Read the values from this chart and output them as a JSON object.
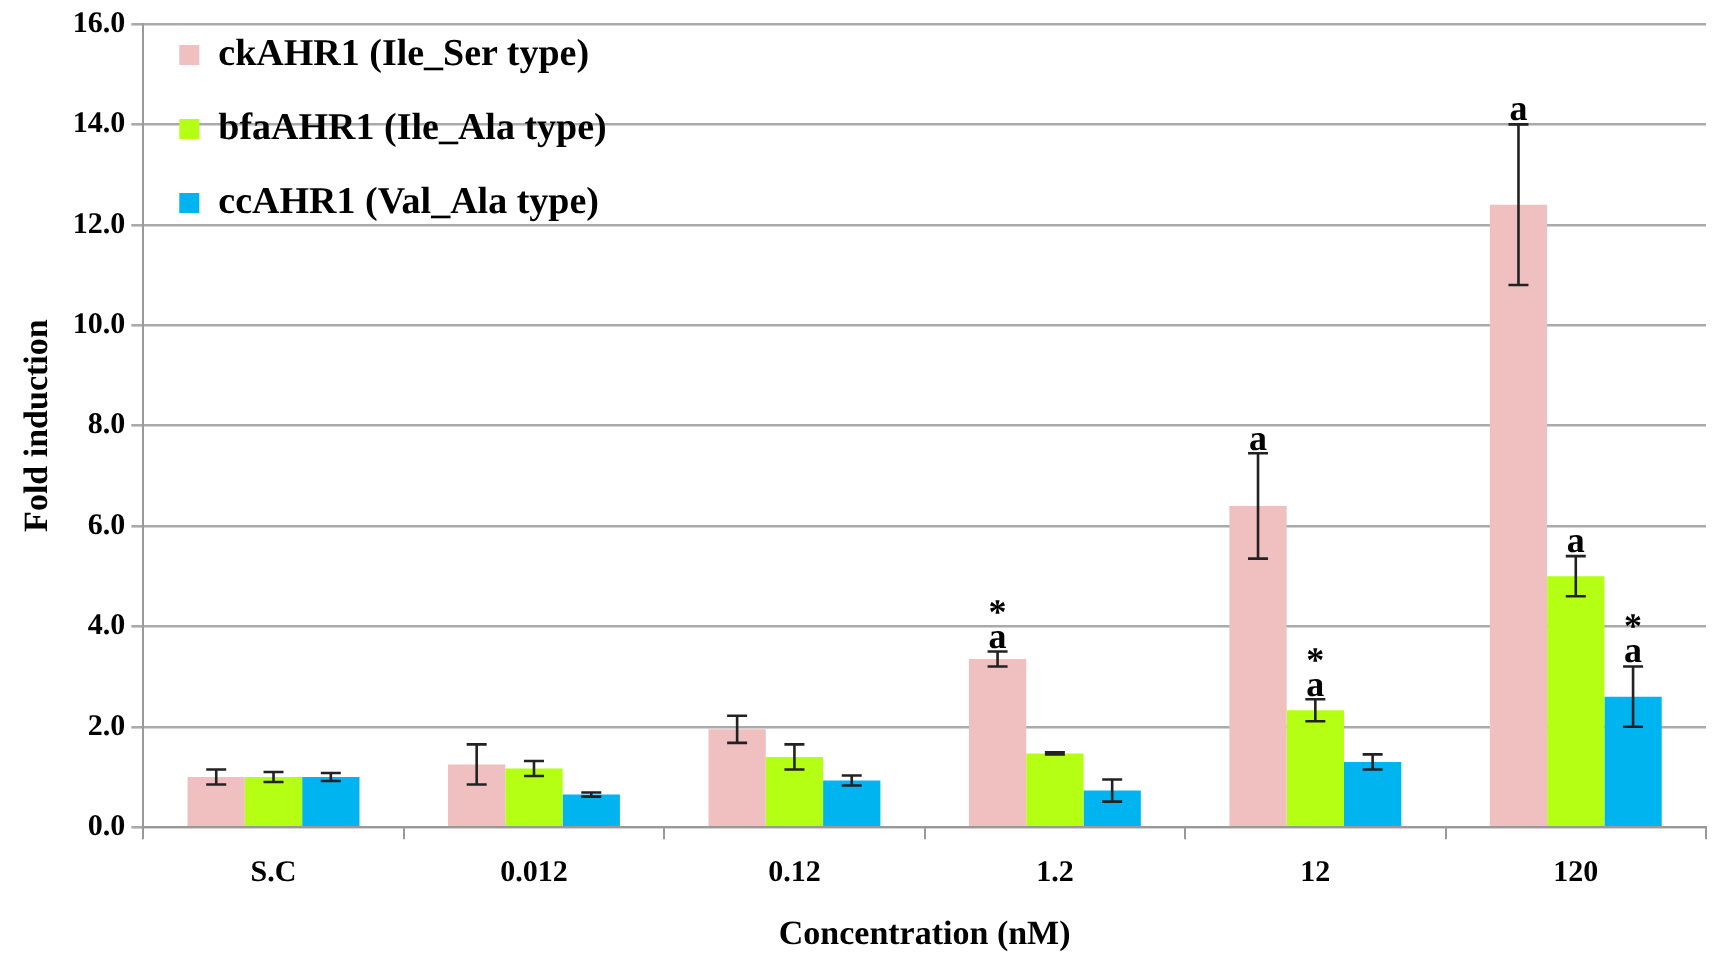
{
  "chart_data": {
    "type": "bar",
    "xlabel": "Concentration (nM)",
    "ylabel": "Fold induction",
    "categories": [
      "S.C",
      "0.012",
      "0.12",
      "1.2",
      "12",
      "120"
    ],
    "series": [
      {
        "name": "ckAHR1 (Ile_Ser type)",
        "color": "#f0c0c0",
        "values": [
          1.0,
          1.25,
          1.95,
          3.35,
          6.4,
          12.4
        ],
        "errors": [
          0.15,
          0.4,
          0.27,
          0.15,
          1.05,
          1.6
        ],
        "value_labels": [
          null,
          null,
          null,
          "*\na",
          "a",
          "a"
        ]
      },
      {
        "name": "bfaAHR1 (Ile_Ala type)",
        "color": "#b4ff14",
        "values": [
          1.0,
          1.17,
          1.4,
          1.47,
          2.33,
          5.0
        ],
        "errors": [
          0.1,
          0.15,
          0.25,
          0.02,
          0.22,
          0.4
        ],
        "value_labels": [
          null,
          null,
          null,
          null,
          "*\na",
          "a"
        ]
      },
      {
        "name": "ccAHR1 (Val_Ala type)",
        "color": "#00b4f0",
        "values": [
          1.0,
          0.65,
          0.93,
          0.73,
          1.3,
          2.6
        ],
        "errors": [
          0.08,
          0.04,
          0.1,
          0.22,
          0.15,
          0.6
        ],
        "value_labels": [
          null,
          null,
          null,
          null,
          null,
          "*\na"
        ]
      }
    ],
    "ylim": [
      0,
      16
    ],
    "yticks": [
      {
        "value": 0,
        "label": "0.0"
      },
      {
        "value": 2,
        "label": "2.0"
      },
      {
        "value": 4,
        "label": "4.0"
      },
      {
        "value": 6,
        "label": "6.0"
      },
      {
        "value": 8,
        "label": "8.0"
      },
      {
        "value": 10,
        "label": "10.0"
      },
      {
        "value": 12,
        "label": "12.0"
      },
      {
        "value": 14,
        "label": "14.0"
      },
      {
        "value": 16,
        "label": "16.0"
      }
    ],
    "grid": "y",
    "legend": "top left"
  }
}
